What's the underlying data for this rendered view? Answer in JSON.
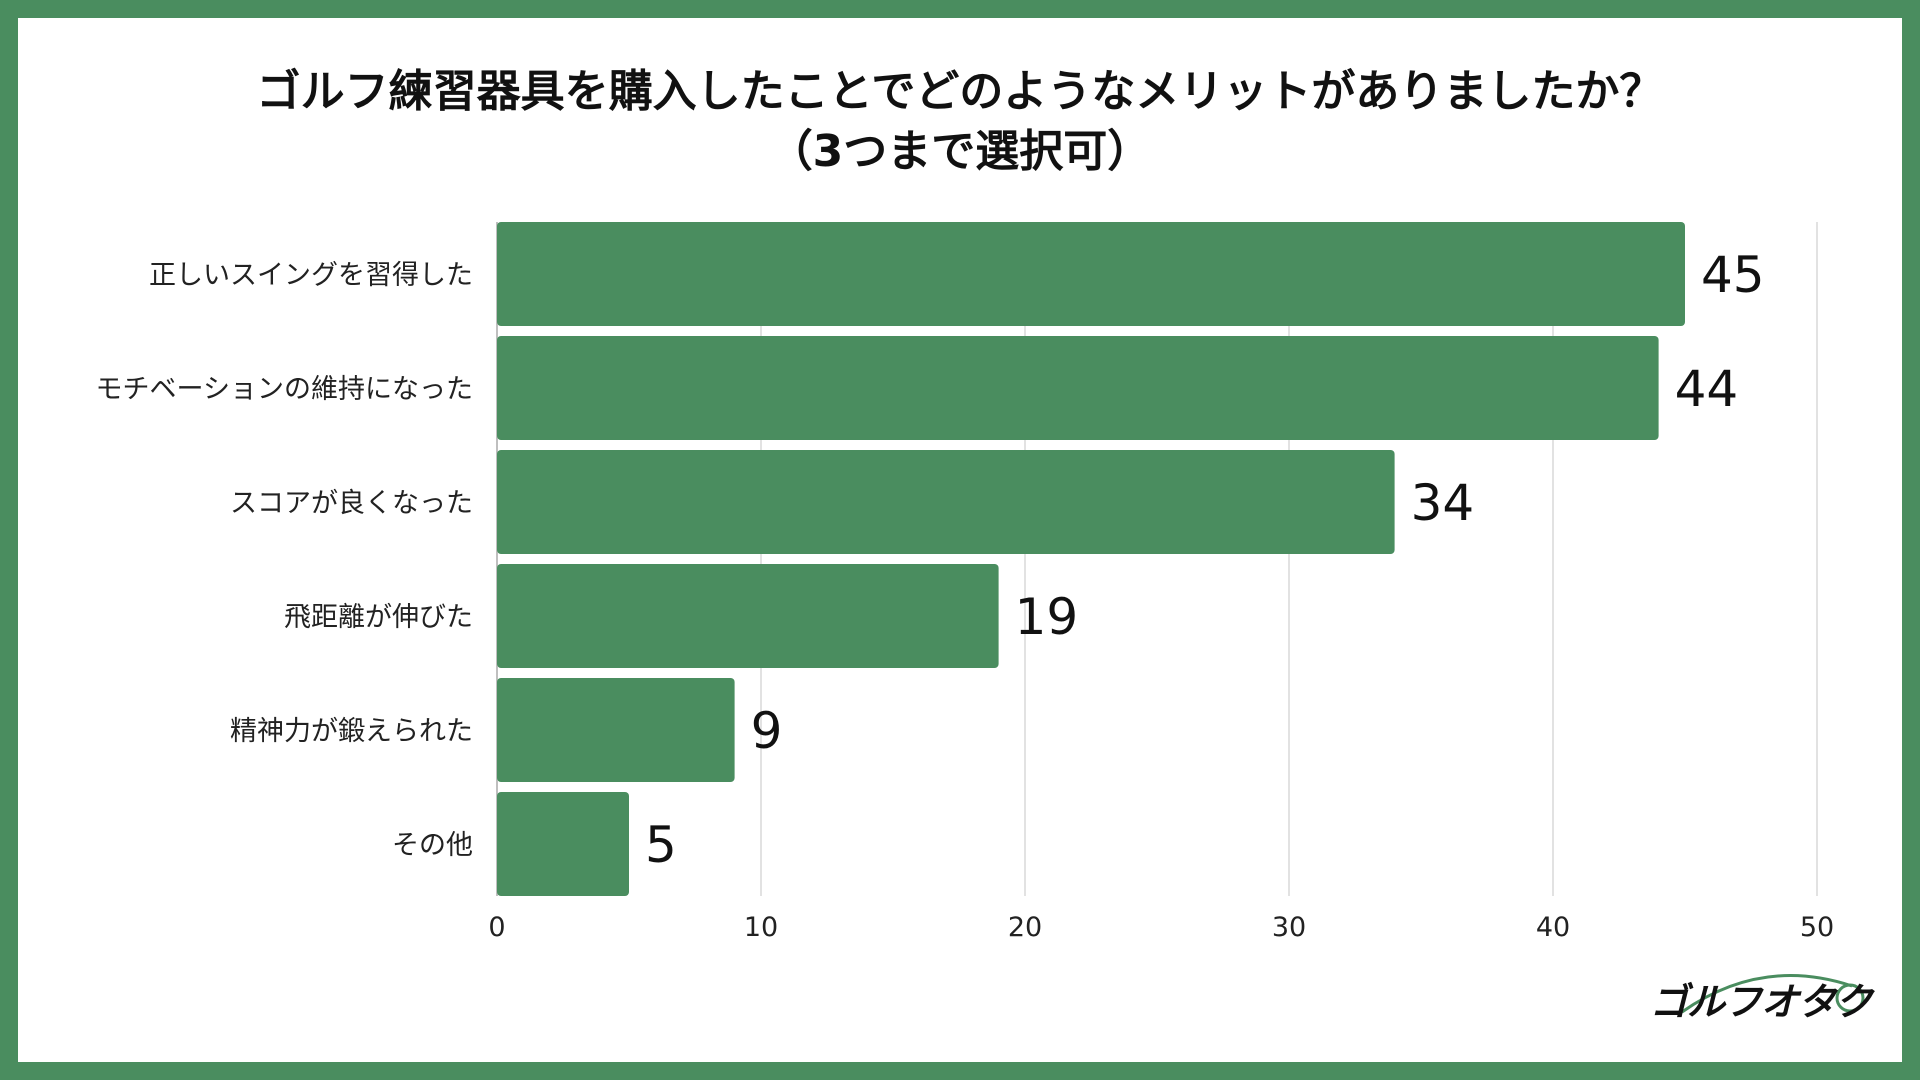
{
  "title_line1": "ゴルフ練習器具を購入したことでどのようなメリットがありましたか？",
  "title_line2": "（3つまで選択可）",
  "logo_text": "ゴルフオタク",
  "colors": {
    "bar": "#4a8d5f",
    "border": "#4a8d5f",
    "grid": "#d9d9d9"
  },
  "chart_data": {
    "type": "bar",
    "orientation": "horizontal",
    "categories": [
      "正しいスイングを習得した",
      "モチベーションの維持になった",
      "スコアが良くなった",
      "飛距離が伸びた",
      "精神力が鍛えられた",
      "その他"
    ],
    "values": [
      45,
      44,
      34,
      19,
      9,
      5
    ],
    "xlim": [
      0,
      50
    ],
    "ticks": [
      0,
      10,
      20,
      30,
      40,
      50
    ],
    "grid": true,
    "legend": "none"
  }
}
